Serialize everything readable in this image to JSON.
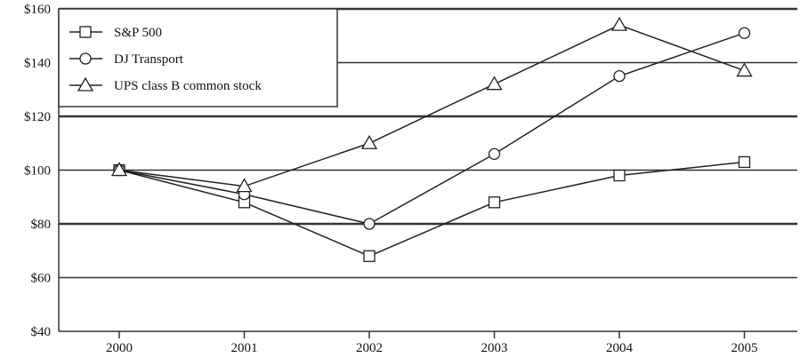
{
  "chart_data": {
    "type": "line",
    "title": "",
    "xlabel": "",
    "ylabel": "",
    "categories": [
      "2000",
      "2001",
      "2002",
      "2003",
      "2004",
      "2005"
    ],
    "yticks": [
      40,
      60,
      80,
      100,
      120,
      140,
      160
    ],
    "ytick_labels": [
      "$40",
      "$60",
      "$80",
      "$100",
      "$120",
      "$140",
      "$160"
    ],
    "ylim": [
      40,
      160
    ],
    "grid": true,
    "legend_position": "top-left",
    "series": [
      {
        "name": "S&P 500",
        "marker": "square",
        "values": [
          100,
          88,
          68,
          88,
          98,
          103
        ]
      },
      {
        "name": "DJ Transport",
        "marker": "circle",
        "values": [
          100,
          91,
          80,
          106,
          135,
          151
        ]
      },
      {
        "name": "UPS class B common stock",
        "marker": "triangle",
        "values": [
          100,
          94,
          110,
          132,
          154,
          137
        ]
      }
    ],
    "colors": {
      "line": "#222222",
      "grid": "#333333",
      "marker_fill": "#ffffff"
    }
  }
}
